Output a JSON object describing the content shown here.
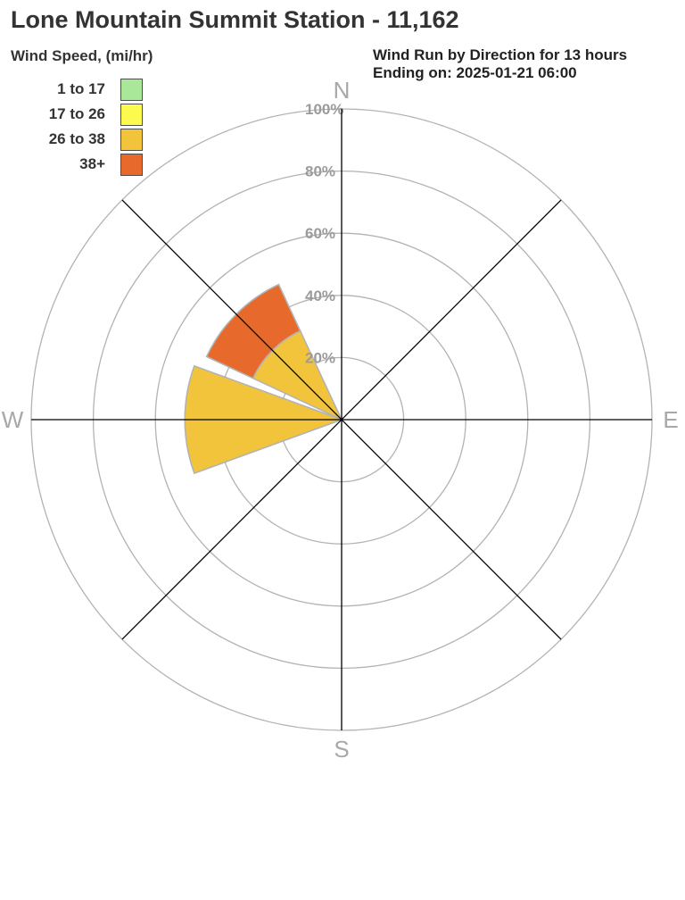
{
  "header": {
    "title": "Lone Mountain Summit Station - 11,162"
  },
  "chart_data": {
    "type": "wind_rose",
    "title": "Wind Run by Direction for 13 hours",
    "subtitle": "Ending on: 2025-01-21 06:00",
    "legend_title": "Wind Speed, (mi/hr)",
    "units": "percent of total wind run",
    "radial_ticks": [
      20,
      40,
      60,
      80,
      100
    ],
    "radial_tick_labels": [
      "20%",
      "40%",
      "60%",
      "80%",
      "100%"
    ],
    "sector_half_width_deg": 20,
    "speed_bins": [
      {
        "label": "1 to 17",
        "color": "#a9e899"
      },
      {
        "label": "17 to 26",
        "color": "#fcf94f"
      },
      {
        "label": "26 to 38",
        "color": "#f1c43c"
      },
      {
        "label": "38+",
        "color": "#e7692c"
      }
    ],
    "compass_labels": [
      {
        "label": "N",
        "angle_deg": 0
      },
      {
        "label": "E",
        "angle_deg": 90
      },
      {
        "label": "S",
        "angle_deg": 180
      },
      {
        "label": "W",
        "angle_deg": 270
      }
    ],
    "petals": [
      {
        "direction": "W",
        "angle_deg": 270,
        "segments": [
          {
            "bin": "26 to 38",
            "from_pct": 0,
            "to_pct": 50.5
          }
        ]
      },
      {
        "direction": "NW",
        "angle_deg": 315,
        "segments": [
          {
            "bin": "26 to 38",
            "from_pct": 0,
            "to_pct": 31.5
          },
          {
            "bin": "38+",
            "from_pct": 31.5,
            "to_pct": 48
          }
        ]
      }
    ],
    "colors": {
      "grid": "#b3b3b3",
      "axis": "#000000",
      "tick_label": "#9b9b9b",
      "compass_label": "#a8a8a8",
      "petal_stroke": "#b3b3b3"
    }
  }
}
